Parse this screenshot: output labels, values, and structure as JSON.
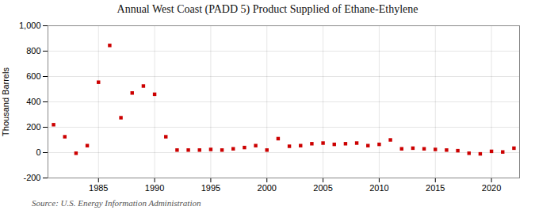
{
  "chart_data": {
    "type": "scatter",
    "title": "Annual West Coast (PADD 5) Product Supplied of Ethane-Ethylene",
    "ylabel": "Thousand Barrels",
    "source": "Source: U.S. Energy Information Administration",
    "color": "#cc0000",
    "marker": "square",
    "x": [
      1981,
      1982,
      1983,
      1984,
      1985,
      1986,
      1987,
      1988,
      1989,
      1990,
      1991,
      1992,
      1993,
      1994,
      1995,
      1996,
      1997,
      1998,
      1999,
      2000,
      2001,
      2002,
      2003,
      2004,
      2005,
      2006,
      2007,
      2008,
      2009,
      2010,
      2011,
      2012,
      2013,
      2014,
      2015,
      2016,
      2017,
      2018,
      2019,
      2020,
      2021,
      2022
    ],
    "values": [
      220,
      125,
      -5,
      55,
      555,
      845,
      275,
      470,
      525,
      460,
      125,
      20,
      20,
      20,
      25,
      20,
      30,
      40,
      55,
      20,
      110,
      50,
      55,
      70,
      75,
      65,
      70,
      75,
      55,
      65,
      100,
      30,
      35,
      30,
      25,
      20,
      15,
      -5,
      -10,
      10,
      5,
      35
    ],
    "xlim": [
      1980.5,
      2022.5
    ],
    "xticks": [
      1985,
      1990,
      1995,
      2000,
      2005,
      2010,
      2015,
      2020
    ],
    "ylim": [
      -200,
      1000
    ],
    "yticks": [
      -200,
      0,
      200,
      400,
      600,
      800,
      {
        "value": 1000,
        "label": "1,000"
      }
    ],
    "grid": true
  }
}
